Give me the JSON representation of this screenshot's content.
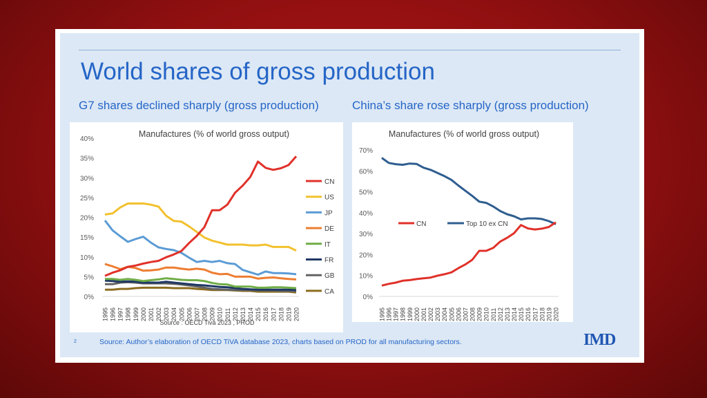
{
  "slide": {
    "title": "World shares of gross production",
    "left_subtitle": "G7 shares declined sharply (gross production)",
    "right_subtitle": "China’s share rose sharply (gross production)",
    "footer": "Source: Author’s elaboration of OECD   TiVA  database 2023, charts based on PROD for all manufacturing sectors.",
    "page_number": "2",
    "logo": "IMD"
  },
  "chart_data": [
    {
      "type": "line",
      "title": "Manufactures (% of world gross output)",
      "source_note": "Source : OECD Tiva 2023 , PROD",
      "x": [
        1995,
        1996,
        1997,
        1998,
        1999,
        2000,
        2001,
        2002,
        2003,
        2004,
        2005,
        2006,
        2007,
        2008,
        2009,
        2010,
        2011,
        2012,
        2013,
        2014,
        2015,
        2016,
        2017,
        2018,
        2019,
        2020
      ],
      "ylim": [
        0,
        40
      ],
      "yticks": [
        "0%",
        "5%",
        "10%",
        "15%",
        "20%",
        "25%",
        "30%",
        "35%",
        "40%"
      ],
      "grid": false,
      "legend": "right",
      "series": [
        {
          "name": "CN",
          "color": "#e0312a",
          "values": [
            5.2,
            6.0,
            6.6,
            7.5,
            7.8,
            8.3,
            8.7,
            9.0,
            9.9,
            10.6,
            11.5,
            13.5,
            15.3,
            17.5,
            21.8,
            21.8,
            23.2,
            26.2,
            28.0,
            30.2,
            34.1,
            32.5,
            32.0,
            32.4,
            33.2,
            35.4
          ]
        },
        {
          "name": "US",
          "color": "#f2c12e",
          "values": [
            20.7,
            21.0,
            22.5,
            23.5,
            23.5,
            23.5,
            23.2,
            22.7,
            20.4,
            19.1,
            18.9,
            17.7,
            16.3,
            14.9,
            14.1,
            13.6,
            13.1,
            13.1,
            13.1,
            12.9,
            12.9,
            13.1,
            12.5,
            12.5,
            12.5,
            11.6
          ]
        },
        {
          "name": "JP",
          "color": "#5b9bd5",
          "values": [
            19.2,
            16.7,
            15.2,
            13.8,
            14.5,
            15.1,
            13.6,
            12.4,
            12.0,
            11.7,
            11.0,
            9.8,
            8.7,
            9.0,
            8.7,
            9.0,
            8.4,
            8.2,
            6.7,
            6.1,
            5.5,
            6.3,
            5.9,
            5.9,
            5.8,
            5.6
          ]
        },
        {
          "name": "DE",
          "color": "#ed7d31",
          "values": [
            8.2,
            7.6,
            6.9,
            7.5,
            7.2,
            6.5,
            6.6,
            6.8,
            7.3,
            7.3,
            7.0,
            6.8,
            7.0,
            6.8,
            6.0,
            5.6,
            5.7,
            5.0,
            5.0,
            5.0,
            4.5,
            4.7,
            4.8,
            4.6,
            4.4,
            4.3
          ]
        },
        {
          "name": "IT",
          "color": "#70ad47",
          "values": [
            4.4,
            4.4,
            4.2,
            4.4,
            4.2,
            3.9,
            4.1,
            4.3,
            4.6,
            4.4,
            4.2,
            4.1,
            4.1,
            3.9,
            3.4,
            3.1,
            3.0,
            2.5,
            2.5,
            2.5,
            2.2,
            2.2,
            2.3,
            2.3,
            2.2,
            2.1
          ]
        },
        {
          "name": "FR",
          "color": "#1f3864",
          "values": [
            4.0,
            3.9,
            3.7,
            3.8,
            3.7,
            3.5,
            3.5,
            3.5,
            3.7,
            3.5,
            3.3,
            3.1,
            2.9,
            2.8,
            2.6,
            2.4,
            2.3,
            2.1,
            1.9,
            1.8,
            1.7,
            1.7,
            1.7,
            1.7,
            1.7,
            1.6
          ]
        },
        {
          "name": "GB",
          "color": "#636363",
          "values": [
            3.1,
            3.1,
            3.5,
            3.6,
            3.5,
            3.3,
            3.3,
            3.3,
            3.3,
            3.2,
            3.0,
            2.8,
            2.5,
            2.2,
            1.9,
            1.8,
            1.7,
            1.6,
            1.6,
            1.6,
            1.5,
            1.5,
            1.5,
            1.4,
            1.4,
            1.3
          ]
        },
        {
          "name": "CA",
          "color": "#8c6d1f",
          "values": [
            1.7,
            1.7,
            1.9,
            1.9,
            2.1,
            2.2,
            2.2,
            2.2,
            2.2,
            2.1,
            2.1,
            2.1,
            1.9,
            1.8,
            1.6,
            1.6,
            1.6,
            1.5,
            1.4,
            1.4,
            1.2,
            1.2,
            1.2,
            1.2,
            1.2,
            1.0
          ]
        }
      ]
    },
    {
      "type": "line",
      "title": "Manufactures (% of world gross output)",
      "x": [
        1995,
        1996,
        1997,
        1998,
        1999,
        2000,
        2001,
        2002,
        2003,
        2004,
        2005,
        2006,
        2007,
        2008,
        2009,
        2010,
        2011,
        2012,
        2013,
        2014,
        2015,
        2016,
        2017,
        2018,
        2019,
        2020
      ],
      "ylim": [
        0,
        70
      ],
      "yticks": [
        "0%",
        "10%",
        "20%",
        "30%",
        "40%",
        "50%",
        "60%",
        "70%"
      ],
      "grid": false,
      "legend": "center",
      "series": [
        {
          "name": "CN",
          "color": "#e0312a",
          "values": [
            5.2,
            6.0,
            6.6,
            7.5,
            7.8,
            8.3,
            8.7,
            9.0,
            9.9,
            10.6,
            11.5,
            13.5,
            15.3,
            17.5,
            21.8,
            21.8,
            23.2,
            26.2,
            28.0,
            30.2,
            34.1,
            32.5,
            32.0,
            32.4,
            33.2,
            35.4
          ]
        },
        {
          "name": "Top  10 ex CN",
          "color": "#2e5d8f",
          "values": [
            66.2,
            63.8,
            63.2,
            62.9,
            63.5,
            63.3,
            61.5,
            60.5,
            59.0,
            57.5,
            55.7,
            53.0,
            50.5,
            48.0,
            45.3,
            44.7,
            43.0,
            40.8,
            39.3,
            38.3,
            36.8,
            37.3,
            37.3,
            37.0,
            36.0,
            34.5
          ]
        }
      ]
    }
  ]
}
